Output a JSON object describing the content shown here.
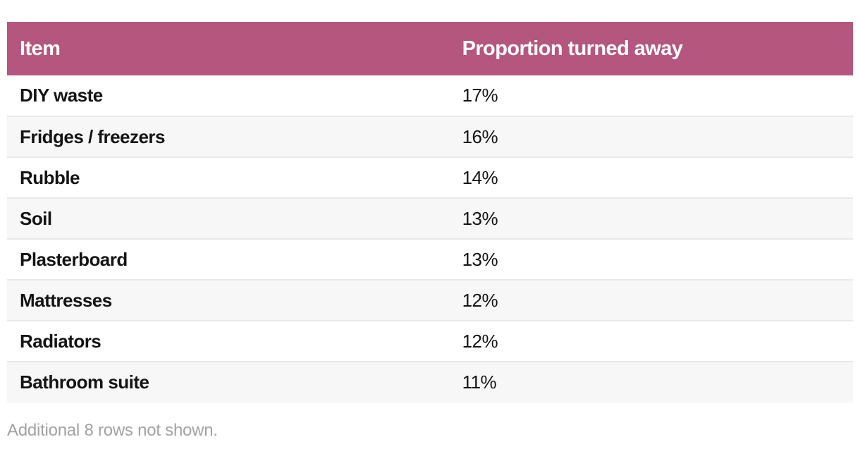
{
  "chart_data": {
    "type": "table",
    "columns": [
      {
        "key": "item",
        "label": "Item"
      },
      {
        "key": "value",
        "label": "Proportion turned away"
      }
    ],
    "rows": [
      {
        "item": "DIY waste",
        "value": "17%"
      },
      {
        "item": "Fridges / freezers",
        "value": "16%"
      },
      {
        "item": "Rubble",
        "value": "14%"
      },
      {
        "item": "Soil",
        "value": "13%"
      },
      {
        "item": "Plasterboard",
        "value": "13%"
      },
      {
        "item": "Mattresses",
        "value": "12%"
      },
      {
        "item": "Radiators",
        "value": "12%"
      },
      {
        "item": "Bathroom suite",
        "value": "11%"
      }
    ],
    "values_pct": [
      17,
      16,
      14,
      13,
      13,
      12,
      12,
      11
    ],
    "note": "Additional 8 rows not shown."
  },
  "colors": {
    "header_bg": "#b4567e",
    "header_text": "#ffffff",
    "row_alt_bg": "#f7f7f7",
    "row_divider": "#e9e9e9",
    "item_text": "#141414",
    "note_text": "#a2a2a2",
    "page_bg": "#ffffff"
  }
}
